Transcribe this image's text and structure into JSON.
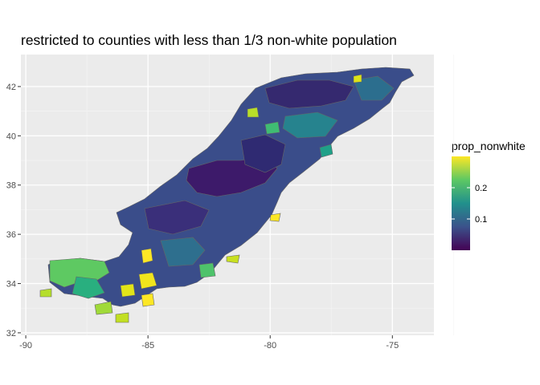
{
  "title": "restricted to counties with less than 1/3 non-white population",
  "x_axis": {
    "ticks": [
      "-90",
      "-85",
      "-80",
      "-75"
    ],
    "values": [
      -90,
      -85,
      -80,
      -75
    ],
    "range": [
      -90.2,
      -73.3
    ]
  },
  "y_axis": {
    "ticks": [
      "32",
      "34",
      "36",
      "38",
      "40",
      "42"
    ],
    "values": [
      32,
      34,
      36,
      38,
      40,
      42
    ],
    "range": [
      31.9,
      43.3
    ]
  },
  "legend": {
    "title": "prop_nonwhite",
    "ticks": [
      "0.2",
      "0.1"
    ],
    "tick_values": [
      0.2,
      0.1
    ],
    "range": [
      0.0,
      0.3
    ],
    "palette": "viridis",
    "colors": [
      "#440154",
      "#3b528b",
      "#21908c",
      "#5dc863",
      "#fde725"
    ]
  },
  "colors": {
    "panel": "#ebebeb",
    "grid_major": "#ffffff",
    "grid_minor": "#f4f4f4",
    "county_border": "#666666"
  }
}
